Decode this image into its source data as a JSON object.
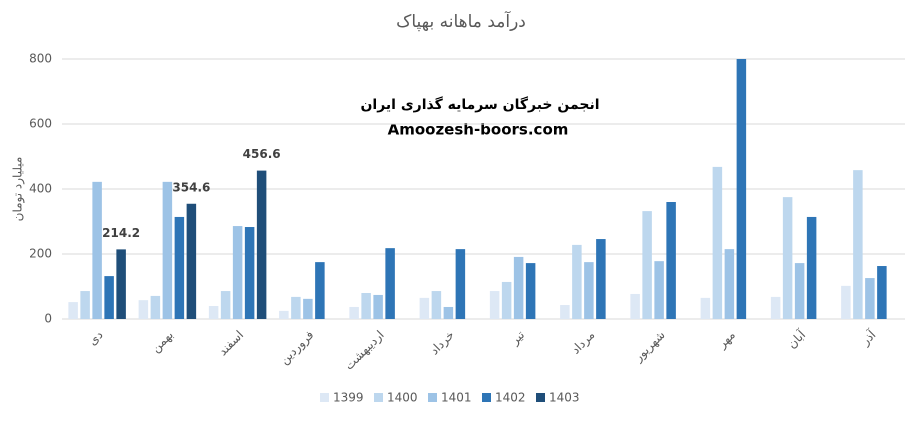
{
  "chart_data": {
    "type": "bar",
    "title": "درآمد ماهانه بهپاک",
    "y_label": "میلیارد تومان",
    "annotations": [
      "انجمن خبرگان سرمایه گذاری ایران",
      "Amoozesh-boors.com"
    ],
    "categories": [
      "دی",
      "بهمن",
      "اسفند",
      "فروردین",
      "اردیبهشت",
      "خرداد",
      "تیر",
      "مرداد",
      "شهریور",
      "مهر",
      "آبان",
      "آذر"
    ],
    "series": [
      {
        "name": "1399",
        "color": "#dde8f5",
        "values": [
          52,
          58,
          40,
          25,
          37,
          65,
          86,
          43,
          77,
          65,
          68,
          102
        ]
      },
      {
        "name": "1400",
        "color": "#bdd7ee",
        "values": [
          86,
          71,
          86,
          68,
          80,
          86,
          114,
          228,
          332,
          468,
          375,
          458
        ]
      },
      {
        "name": "1401",
        "color": "#9dc3e6",
        "values": [
          422,
          422,
          286,
          62,
          74,
          37,
          191,
          175,
          178,
          215,
          172,
          126
        ]
      },
      {
        "name": "1402",
        "color": "#2e75b6",
        "values": [
          132,
          314,
          283,
          175,
          218,
          215,
          172,
          246,
          360,
          800,
          314,
          163
        ]
      },
      {
        "name": "1403",
        "color": "#1f4e79",
        "data_labels": true,
        "values": [
          214.2,
          354.6,
          456.6,
          null,
          null,
          null,
          null,
          null,
          null,
          null,
          null,
          null
        ]
      }
    ],
    "ylim": [
      0,
      800
    ],
    "yticks": [
      0,
      200,
      400,
      600,
      800
    ],
    "grid": true,
    "legend": "bottom"
  }
}
